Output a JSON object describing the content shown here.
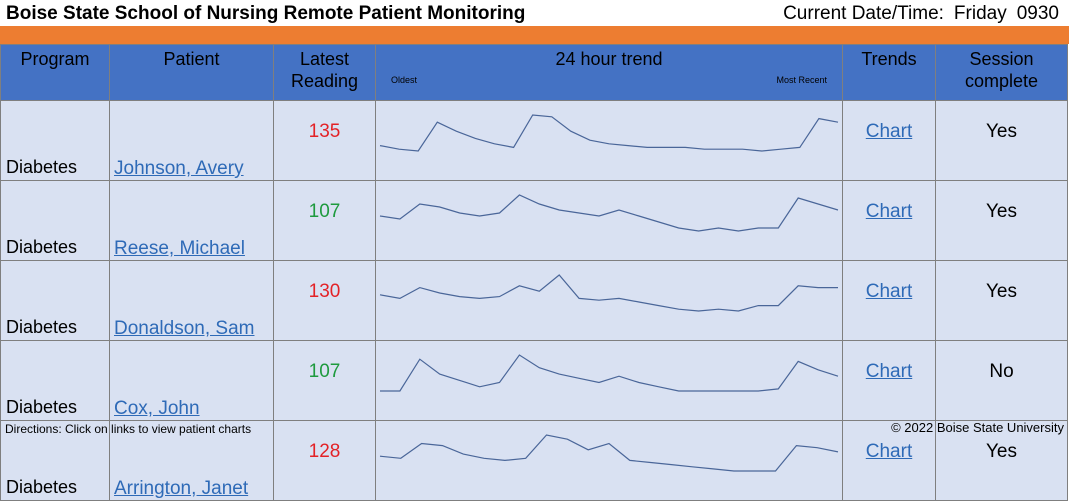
{
  "header": {
    "title": "Boise State School of Nursing Remote Patient Monitoring",
    "datetime_label": "Current Date/Time:",
    "day": "Friday",
    "time": "0930"
  },
  "columns": {
    "program": "Program",
    "patient": "Patient",
    "latest_line1": "Latest",
    "latest_line2": "Reading",
    "trend": "24 hour trend",
    "oldest": "Oldest",
    "most_recent": "Most Recent",
    "trends": "Trends",
    "session_line1": "Session",
    "session_line2": "complete"
  },
  "colors": {
    "accent_orange": "#ED7D31",
    "header_blue": "#4472C4",
    "row_bg": "#D9E1F2",
    "link": "#2E6AB7",
    "reading_high": "#E32227",
    "reading_normal": "#1E9A3E",
    "sparkline": "#4A6699"
  },
  "rows": [
    {
      "program": "Diabetes",
      "patient": "Johnson, Avery",
      "reading": "135",
      "status": "high",
      "chart_label": "Chart",
      "session": "Yes",
      "trend": [
        135,
        133,
        132,
        148,
        143,
        139,
        136,
        134,
        152,
        151,
        143,
        138,
        136,
        135,
        134,
        134,
        134,
        133,
        133,
        133,
        132,
        133,
        134,
        150,
        148
      ]
    },
    {
      "program": "Diabetes",
      "patient": "Reese, Michael",
      "reading": "107",
      "status": "normal",
      "chart_label": "Chart",
      "session": "Yes",
      "trend": [
        114,
        113,
        118,
        117,
        115,
        114,
        115,
        121,
        118,
        116,
        115,
        114,
        116,
        114,
        112,
        110,
        109,
        110,
        109,
        110,
        110,
        120,
        118,
        116
      ]
    },
    {
      "program": "Diabetes",
      "patient": "Donaldson, Sam",
      "reading": "130",
      "status": "high",
      "chart_label": "Chart",
      "session": "Yes",
      "trend": [
        126,
        124,
        130,
        127,
        125,
        124,
        125,
        131,
        128,
        137,
        124,
        123,
        124,
        122,
        120,
        118,
        117,
        118,
        117,
        120,
        120,
        131,
        130,
        130
      ]
    },
    {
      "program": "Diabetes",
      "patient": "Cox, John",
      "reading": "107",
      "status": "normal",
      "chart_label": "Chart",
      "session": "No",
      "trend": [
        110,
        110,
        125,
        118,
        115,
        112,
        114,
        127,
        121,
        118,
        116,
        114,
        117,
        114,
        112,
        110,
        110,
        110,
        110,
        110,
        111,
        124,
        120,
        117
      ]
    },
    {
      "program": "Diabetes",
      "patient": "Arrington, Janet",
      "reading": "128",
      "status": "high",
      "chart_label": "Chart",
      "session": "Yes",
      "trend": [
        120,
        119,
        126,
        125,
        121,
        119,
        118,
        119,
        130,
        128,
        123,
        126,
        118,
        117,
        116,
        115,
        114,
        113,
        113,
        113,
        125,
        124,
        122
      ]
    }
  ],
  "footer": {
    "directions": "Directions: Click on links to view patient charts",
    "copyright": "© 2022 Boise State University"
  }
}
